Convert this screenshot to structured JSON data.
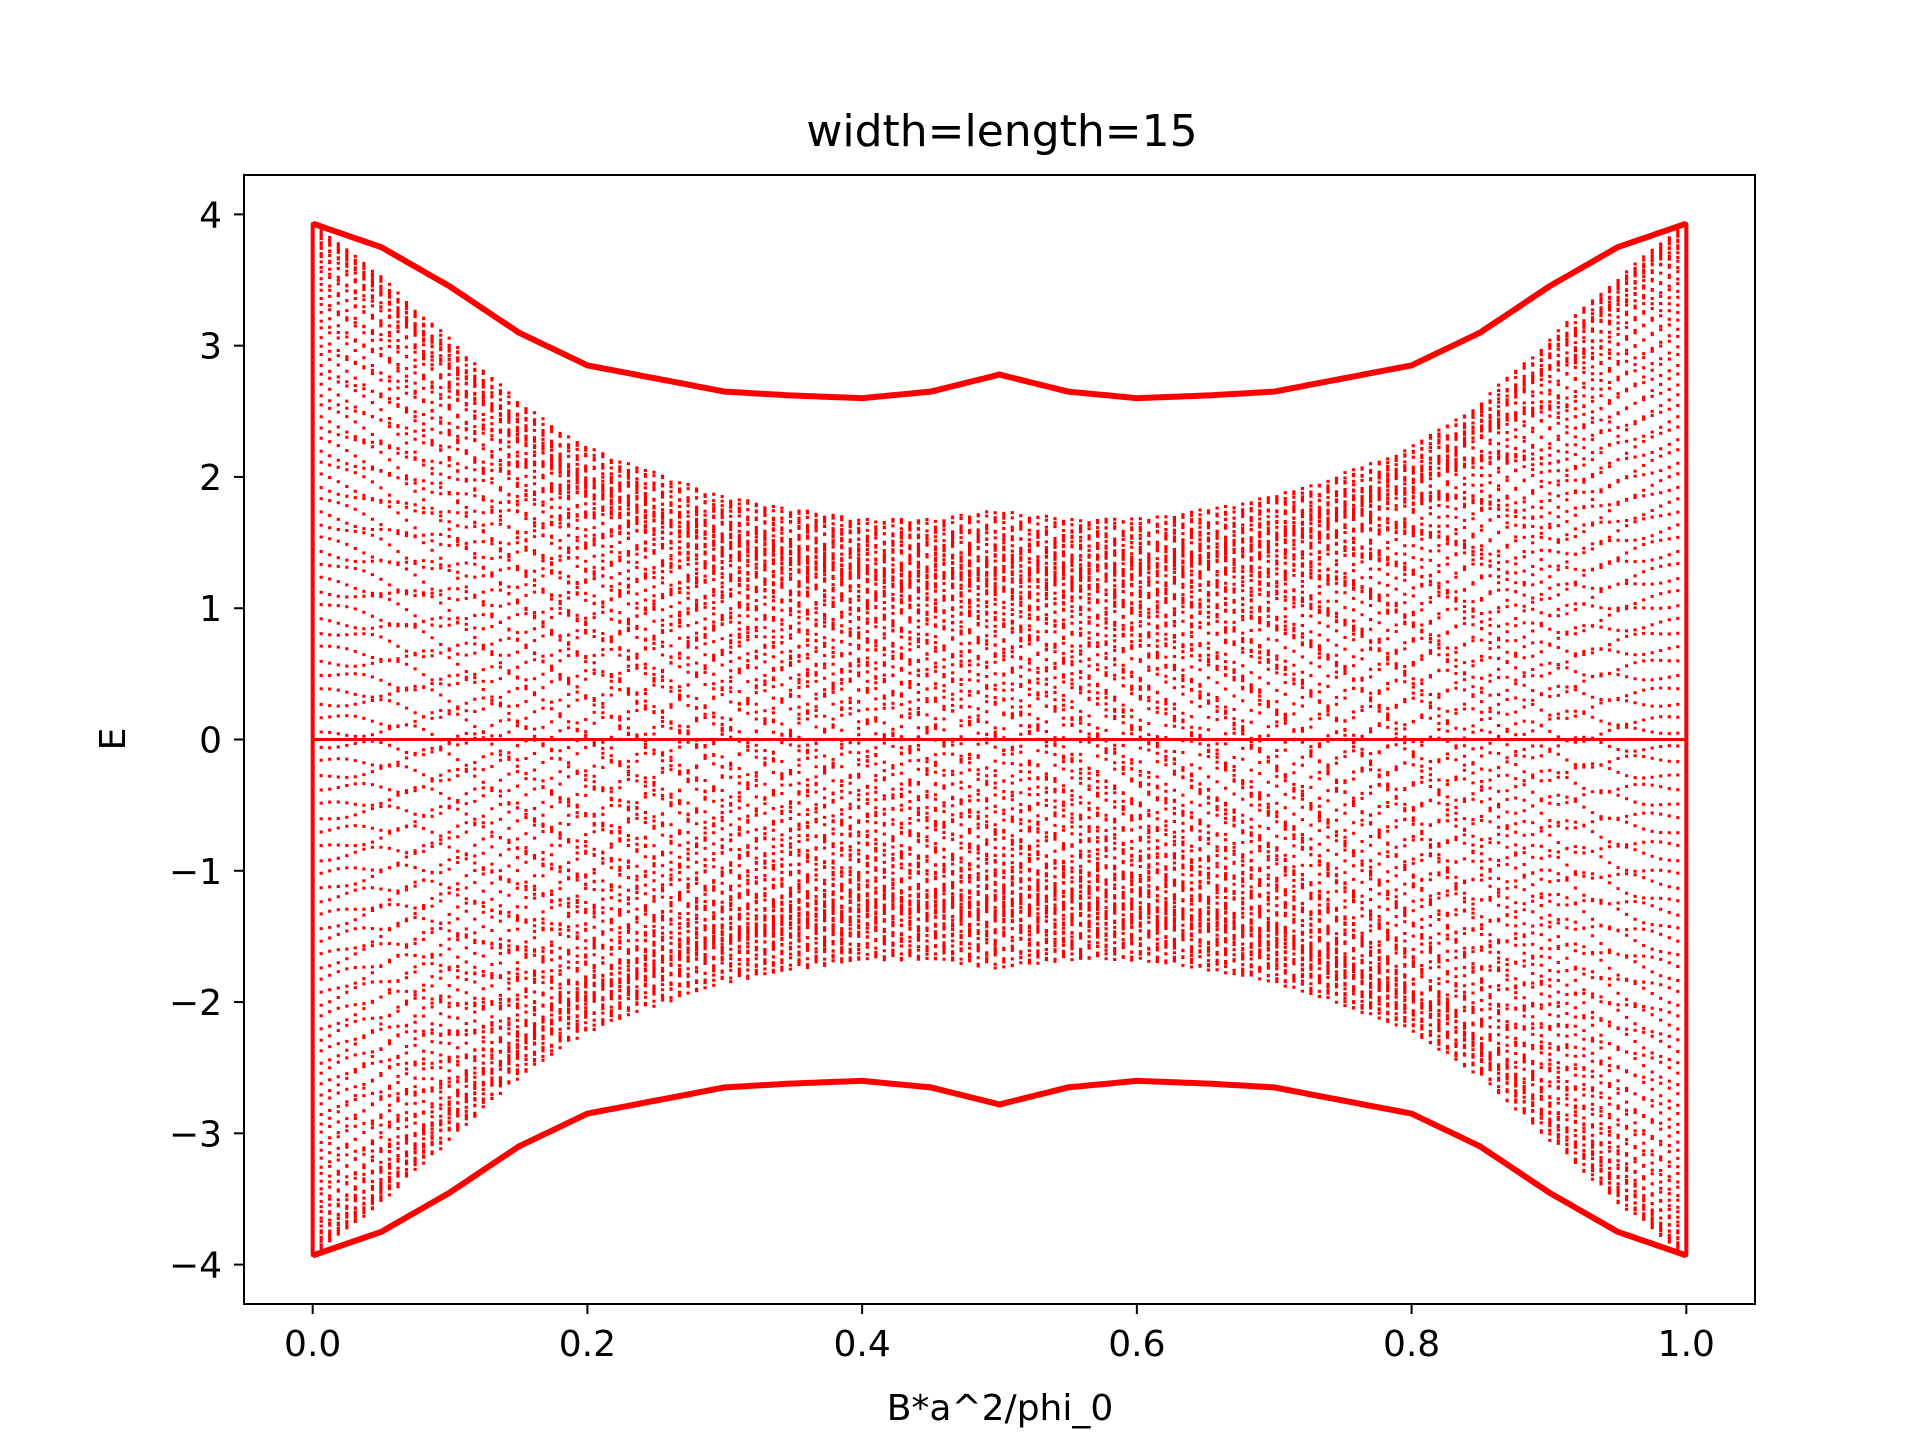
{
  "chart_data": {
    "type": "scatter",
    "title": "width=length=15",
    "xlabel": "B*a^2/phi_0",
    "ylabel": "E",
    "xlim": [
      -0.05,
      1.05
    ],
    "ylim": [
      -4.3,
      4.3
    ],
    "x_ticks": [
      0.0,
      0.2,
      0.4,
      0.6,
      0.8,
      1.0
    ],
    "x_tick_labels": [
      "0.0",
      "0.2",
      "0.4",
      "0.6",
      "0.8",
      "1.0"
    ],
    "y_ticks": [
      4,
      3,
      2,
      1,
      0,
      -1,
      -2,
      -3,
      -4
    ],
    "y_tick_labels": [
      "4",
      "3",
      "2",
      "1",
      "0",
      "−1",
      "−2",
      "−3",
      "−4"
    ],
    "grid": false,
    "legend": "none",
    "marker_color": "#ff0000",
    "marker_size": "small dots",
    "series": [
      {
        "description_of_envelope_upper": "E_max vs B",
        "x": [
          0.0,
          0.05,
          0.1,
          0.15,
          0.2,
          0.25,
          0.3,
          0.35,
          0.4,
          0.45,
          0.5,
          0.55,
          0.6,
          0.65,
          0.7,
          0.75,
          0.8,
          0.85,
          0.9,
          0.95,
          1.0
        ],
        "y": [
          3.93,
          3.75,
          3.45,
          3.1,
          2.85,
          2.75,
          2.65,
          2.62,
          2.6,
          2.65,
          2.78,
          2.65,
          2.6,
          2.62,
          2.65,
          2.75,
          2.85,
          3.1,
          3.45,
          3.75,
          3.93
        ]
      },
      {
        "description_of_envelope_lower": "E_min vs B",
        "x": [
          0.0,
          0.05,
          0.1,
          0.15,
          0.2,
          0.25,
          0.3,
          0.35,
          0.4,
          0.45,
          0.5,
          0.55,
          0.6,
          0.65,
          0.7,
          0.75,
          0.8,
          0.85,
          0.9,
          0.95,
          1.0
        ],
        "y": [
          -3.93,
          -3.75,
          -3.45,
          -3.1,
          -2.85,
          -2.75,
          -2.65,
          -2.62,
          -2.6,
          -2.65,
          -2.78,
          -2.65,
          -2.6,
          -2.62,
          -2.65,
          -2.75,
          -2.85,
          -3.1,
          -3.45,
          -3.75,
          -3.93
        ]
      }
    ]
  }
}
